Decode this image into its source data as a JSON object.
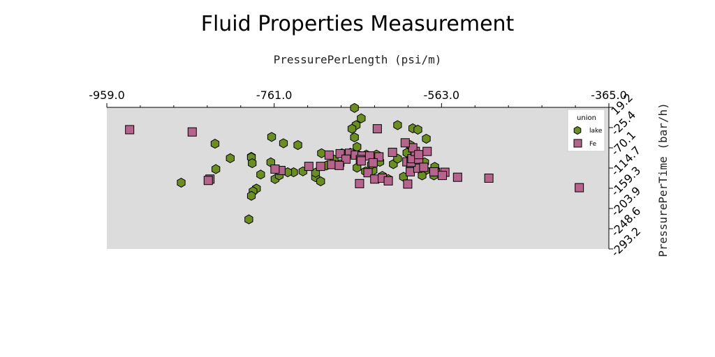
{
  "chart_data": {
    "type": "scatter",
    "title": "Fluid Properties Measurement",
    "xlabel": "PressurePerLength (psi/m)",
    "ylabel": "PressurePerTime (bar/h)",
    "xlim": [
      -959.0,
      -365.0
    ],
    "ylim": [
      -293.2,
      19.2
    ],
    "x_axis_position": "top",
    "y_axis_position": "right",
    "x_ticks": [
      "-959.0",
      "-761.0",
      "-563.0",
      "-365.0"
    ],
    "y_ticks": [
      "19.2",
      "-25.4",
      "-70.1",
      "-114.7",
      "-159.3",
      "-203.9",
      "-248.6",
      "-293.2"
    ],
    "grid": false,
    "plot_background": "#dcdcdc",
    "legend": {
      "title": "union",
      "position": "top-right"
    },
    "series": [
      {
        "name": "lake",
        "marker": "hexagon",
        "color": "#6b8e23",
        "points": [
          [
            -666,
            18
          ],
          [
            -658,
            -5
          ],
          [
            -664,
            -20
          ],
          [
            -666,
            -47
          ],
          [
            -669,
            -28
          ],
          [
            -663,
            -68
          ],
          [
            -615,
            -20
          ],
          [
            -597,
            -27
          ],
          [
            -600,
            -64
          ],
          [
            -604,
            -81
          ],
          [
            -599,
            -94
          ],
          [
            -591,
            -30
          ],
          [
            -581,
            -50
          ],
          [
            -764,
            -46
          ],
          [
            -750,
            -60
          ],
          [
            -733,
            -64
          ],
          [
            -831,
            -61
          ],
          [
            -813,
            -93
          ],
          [
            -788,
            -90
          ],
          [
            -765,
            -102
          ],
          [
            -777,
            -129
          ],
          [
            -760,
            -139
          ],
          [
            -755,
            -131
          ],
          [
            -738,
            -124
          ],
          [
            -712,
            -135
          ],
          [
            -705,
            -82
          ],
          [
            -690,
            -96
          ],
          [
            -671,
            -81
          ],
          [
            -681,
            -82
          ],
          [
            -659,
            -88
          ],
          [
            -652,
            -85
          ],
          [
            -640,
            -85
          ],
          [
            -636,
            -101
          ],
          [
            -644,
            -120
          ],
          [
            -653,
            -122
          ],
          [
            -633,
            -132
          ],
          [
            -626,
            -139
          ],
          [
            -646,
            -107
          ],
          [
            -663,
            -114
          ],
          [
            -683,
            -106
          ],
          [
            -699,
            -109
          ],
          [
            -712,
            -125
          ],
          [
            -727,
            -122
          ],
          [
            -745,
            -124
          ],
          [
            -782,
            -160
          ],
          [
            -786,
            -166
          ],
          [
            -788,
            -91
          ],
          [
            -787,
            -104
          ],
          [
            -871,
            -147
          ],
          [
            -830,
            -117
          ],
          [
            -788,
            -176
          ],
          [
            -706,
            -144
          ],
          [
            -791,
            -228
          ],
          [
            -582,
            -120
          ],
          [
            -570,
            -120
          ],
          [
            -583,
            -102
          ],
          [
            -571,
            -112
          ],
          [
            -586,
            -131
          ],
          [
            -572,
            -131
          ],
          [
            -600,
            -110
          ],
          [
            -608,
            -134
          ],
          [
            -620,
            -106
          ],
          [
            -615,
            -94
          ]
        ]
      },
      {
        "name": "Fe",
        "marker": "square",
        "color": "#b5648c",
        "points": [
          [
            -932,
            -30
          ],
          [
            -858,
            -35
          ],
          [
            -639,
            -28
          ],
          [
            -696,
            -86
          ],
          [
            -683,
            -83
          ],
          [
            -672,
            -82
          ],
          [
            -665,
            -86
          ],
          [
            -657,
            -88
          ],
          [
            -648,
            -88
          ],
          [
            -637,
            -90
          ],
          [
            -621,
            -80
          ],
          [
            -676,
            -95
          ],
          [
            -659,
            -96
          ],
          [
            -644,
            -103
          ],
          [
            -693,
            -107
          ],
          [
            -684,
            -109
          ],
          [
            -706,
            -111
          ],
          [
            -720,
            -111
          ],
          [
            -753,
            -120
          ],
          [
            -760,
            -117
          ],
          [
            -650,
            -125
          ],
          [
            -642,
            -139
          ],
          [
            -633,
            -137
          ],
          [
            -626,
            -143
          ],
          [
            -600,
            -123
          ],
          [
            -591,
            -115
          ],
          [
            -572,
            -123
          ],
          [
            -559,
            -124
          ],
          [
            -562,
            -131
          ],
          [
            -544,
            -135
          ],
          [
            -507,
            -137
          ],
          [
            -400,
            -158
          ],
          [
            -660,
            -149
          ],
          [
            -603,
            -150
          ],
          [
            -604,
            -101
          ],
          [
            -599,
            -102
          ],
          [
            -598,
            -94
          ],
          [
            -590,
            -95
          ],
          [
            -594,
            -78
          ],
          [
            -597,
            -70
          ],
          [
            -590,
            -85
          ],
          [
            -580,
            -78
          ],
          [
            -606,
            -59
          ],
          [
            -658,
            -99
          ],
          [
            -584,
            -113
          ],
          [
            -837,
            -139
          ],
          [
            -839,
            -142
          ]
        ]
      }
    ]
  }
}
